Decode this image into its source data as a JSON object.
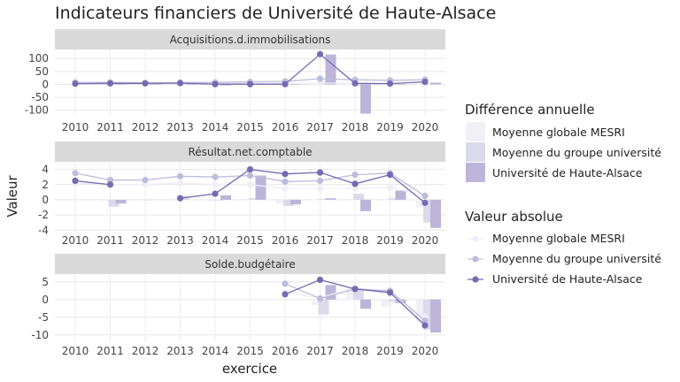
{
  "chart_data": {
    "type": "bar+line (faceted)",
    "title": "Indicateurs financiers de Université de Haute-Alsace",
    "xlabel": "exercice",
    "ylabel": "Valeur",
    "years": [
      "2010",
      "2011",
      "2012",
      "2013",
      "2014",
      "2015",
      "2016",
      "2017",
      "2018",
      "2019",
      "2020"
    ],
    "legend_bar_title": "Différence annuelle",
    "legend_line_title": "Valeur absolue",
    "series_names": [
      "Moyenne globale MESRI",
      "Moyenne du groupe université",
      "Université de Haute-Alsace"
    ],
    "colors": [
      "#efedf7",
      "#bcbddc",
      "#756bb1"
    ],
    "bar_colors": [
      "#f2f0f7",
      "#dadaeb",
      "#bcb5d9"
    ],
    "panels": [
      {
        "label": "Acquisitions.d.immobilisations",
        "ylim": [
          -125,
          135
        ],
        "yticks": [
          100,
          50,
          0,
          -50,
          -100
        ],
        "ytick_labels": [
          "100",
          "50",
          "0",
          "-50",
          "-100"
        ],
        "lines": [
          [
            5,
            5,
            5,
            5,
            5,
            5,
            5,
            5,
            5,
            5,
            6
          ],
          [
            8,
            8,
            6,
            7,
            8,
            10,
            12,
            22,
            18,
            16,
            18
          ],
          [
            3,
            4,
            4,
            5,
            1,
            1,
            1,
            117,
            4,
            3,
            10
          ]
        ],
        "bars": [
          [
            null,
            0,
            0,
            0,
            0,
            0,
            0,
            0,
            0,
            0,
            1
          ],
          [
            null,
            0,
            -2,
            1,
            1,
            2,
            2,
            10,
            -4,
            -2,
            2
          ],
          [
            null,
            1,
            0,
            1,
            -4,
            0,
            0,
            116,
            -113,
            -1,
            7
          ]
        ]
      },
      {
        "label": "Résultat.net.comptable",
        "ylim": [
          -4.2,
          5.0
        ],
        "yticks": [
          4,
          2,
          0,
          -2,
          -4
        ],
        "ytick_labels": [
          "4",
          "2",
          "0",
          "-2",
          "-4"
        ],
        "lines": [
          [
            2.2,
            2.0,
            2.0,
            2.2,
            2.0,
            2.0,
            1.5,
            1.5,
            1.5,
            1.6,
            0.6
          ],
          [
            3.5,
            2.6,
            2.6,
            3.1,
            3.0,
            3.2,
            2.4,
            2.5,
            3.3,
            3.5,
            0.5
          ],
          [
            2.5,
            2.0,
            null,
            0.2,
            0.8,
            4.0,
            3.4,
            3.6,
            2.1,
            3.3,
            -0.4
          ]
        ],
        "bars": [
          [
            null,
            -0.2,
            0.0,
            0.2,
            -0.2,
            0.0,
            -0.5,
            0.0,
            0.0,
            0.1,
            -1.0
          ],
          [
            null,
            -0.9,
            0.0,
            0.5,
            -0.1,
            0.2,
            -0.8,
            0.1,
            0.8,
            0.2,
            -3.0
          ],
          [
            null,
            -0.5,
            null,
            null,
            0.6,
            3.2,
            -0.6,
            0.2,
            -1.5,
            1.2,
            -3.7
          ]
        ]
      },
      {
        "label": "Solde.budgétaire",
        "ylim": [
          -11.8,
          7.2
        ],
        "yticks": [
          5,
          0,
          -5,
          -10
        ],
        "ytick_labels": [
          "5",
          "0",
          "-5",
          "-10"
        ],
        "lines": [
          [
            null,
            null,
            null,
            null,
            null,
            null,
            2.0,
            0.5,
            3.5,
            1.5,
            -4.8
          ],
          [
            null,
            null,
            null,
            null,
            null,
            null,
            4.5,
            0.3,
            3.0,
            2.5,
            -6.0
          ],
          [
            null,
            null,
            null,
            null,
            null,
            null,
            1.5,
            5.6,
            3.0,
            2.0,
            -7.3
          ]
        ],
        "bars": [
          [
            null,
            null,
            null,
            null,
            null,
            null,
            null,
            -1.5,
            3.0,
            -2.0,
            -6.3
          ],
          [
            null,
            null,
            null,
            null,
            null,
            null,
            null,
            -4.2,
            2.7,
            -0.5,
            -8.5
          ],
          [
            null,
            null,
            null,
            null,
            null,
            null,
            null,
            4.1,
            -2.6,
            -1.0,
            -9.3
          ]
        ]
      }
    ]
  }
}
